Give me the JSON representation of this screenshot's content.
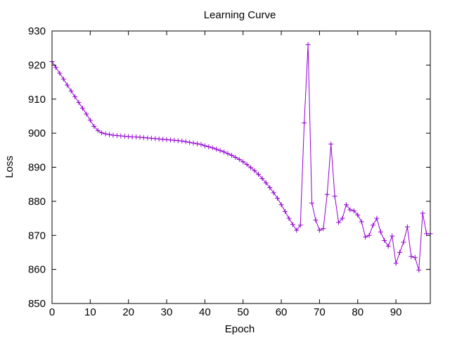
{
  "chart_data": {
    "type": "line",
    "title": "Learning Curve",
    "xlabel": "Epoch",
    "ylabel": "Loss",
    "xlim": [
      0,
      99
    ],
    "ylim": [
      850,
      930
    ],
    "xticks": [
      0,
      10,
      20,
      30,
      40,
      50,
      60,
      70,
      80,
      90
    ],
    "yticks": [
      850,
      860,
      870,
      880,
      890,
      900,
      910,
      920,
      930
    ],
    "grid": false,
    "legend": "none",
    "marker": "plus",
    "line_color": "#9400d3",
    "series": [
      {
        "x": [
          0,
          1,
          2,
          3,
          4,
          5,
          6,
          7,
          8,
          9,
          10,
          11,
          12,
          13,
          14,
          15,
          16,
          17,
          18,
          19,
          20,
          21,
          22,
          23,
          24,
          25,
          26,
          27,
          28,
          29,
          30,
          31,
          32,
          33,
          34,
          35,
          36,
          37,
          38,
          39,
          40,
          41,
          42,
          43,
          44,
          45,
          46,
          47,
          48,
          49,
          50,
          51,
          52,
          53,
          54,
          55,
          56,
          57,
          58,
          59,
          60,
          61,
          62,
          63,
          64,
          65,
          66,
          67,
          68,
          69,
          70,
          71,
          72,
          73,
          74,
          75,
          76,
          77,
          78,
          79,
          80,
          81,
          82,
          83,
          84,
          85,
          86,
          87,
          88,
          89,
          90,
          91,
          92,
          93,
          94,
          95,
          96,
          97,
          98,
          99
        ],
        "values": [
          921.0,
          919.3,
          917.6,
          915.9,
          914.1,
          912.4,
          910.7,
          909.0,
          907.3,
          905.6,
          903.8,
          902.0,
          900.8,
          900.1,
          899.8,
          899.6,
          899.4,
          899.3,
          899.2,
          899.1,
          899.0,
          898.9,
          898.9,
          898.8,
          898.7,
          898.6,
          898.5,
          898.4,
          898.3,
          898.2,
          898.1,
          898.0,
          897.9,
          897.8,
          897.7,
          897.5,
          897.3,
          897.1,
          896.9,
          896.7,
          896.3,
          896.0,
          895.7,
          895.3,
          894.9,
          894.5,
          894.0,
          893.5,
          892.9,
          892.3,
          891.6,
          890.8,
          889.9,
          889.0,
          887.9,
          886.7,
          885.4,
          884.0,
          882.5,
          880.9,
          879.0,
          877.0,
          875.0,
          873.2,
          871.5,
          873.0,
          903.0,
          926.0,
          879.5,
          874.5,
          871.5,
          872.0,
          882.0,
          896.8,
          881.5,
          873.8,
          875.0,
          879.0,
          877.5,
          877.2,
          876.0,
          874.0,
          869.5,
          870.0,
          873.0,
          875.0,
          871.0,
          868.5,
          866.8,
          869.8,
          861.8,
          865.0,
          868.0,
          872.5,
          863.8,
          863.5,
          859.8,
          876.5,
          870.5,
          870.5
        ]
      }
    ]
  }
}
